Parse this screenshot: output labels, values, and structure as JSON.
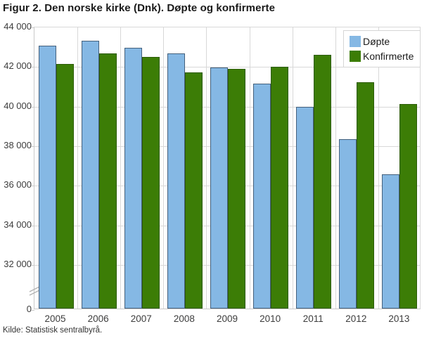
{
  "title": "Figur 2. Den norske kirke (Dnk). Døpte og konfirmerte",
  "source": "Kilde: Statistisk sentralbyrå.",
  "colors": {
    "doepte_fill": "#85b8e4",
    "doepte_border": "#44607c",
    "konfirmerte_fill": "#3c7d06",
    "konfirmerte_border": "#2d5c08",
    "grid": "#d8d8d8",
    "axis": "#c9c9c9",
    "text": "#3d3d3d"
  },
  "chart_data": {
    "type": "bar",
    "title": "Figur 2. Den norske kirke (Dnk). Døpte og konfirmerte",
    "categories": [
      "2005",
      "2006",
      "2007",
      "2008",
      "2009",
      "2010",
      "2011",
      "2012",
      "2013"
    ],
    "series": [
      {
        "name": "Døpte",
        "color": "#85b8e4",
        "border_color": "#44607c",
        "values": [
          43000,
          43250,
          42900,
          42600,
          41900,
          41100,
          39900,
          38300,
          36500
        ]
      },
      {
        "name": "Konfirmerte",
        "color": "#3c7d06",
        "border_color": "#2d5c08",
        "values": [
          42100,
          42600,
          42450,
          41650,
          41850,
          41950,
          42550,
          41150,
          40050
        ]
      }
    ],
    "xlabel": "",
    "ylabel": "",
    "y_ticks": [
      "44 000",
      "42 000",
      "40 000",
      "38 000",
      "36 000",
      "34 000",
      "32 000",
      "0"
    ],
    "y_tick_values": [
      44000,
      42000,
      40000,
      38000,
      36000,
      34000,
      32000,
      0
    ],
    "ylim": [
      32000,
      44000
    ],
    "axis_break": true,
    "grid": true,
    "legend_position": "top-right"
  }
}
